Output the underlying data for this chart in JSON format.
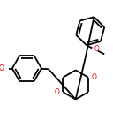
{
  "bg_color": "#ffffff",
  "line_color": "#000000",
  "line_width": 1.3,
  "o_color": "#dd0000",
  "figsize": [
    1.28,
    1.45
  ],
  "dpi": 100,
  "xlim": [
    0,
    128
  ],
  "ylim": [
    0,
    145
  ]
}
